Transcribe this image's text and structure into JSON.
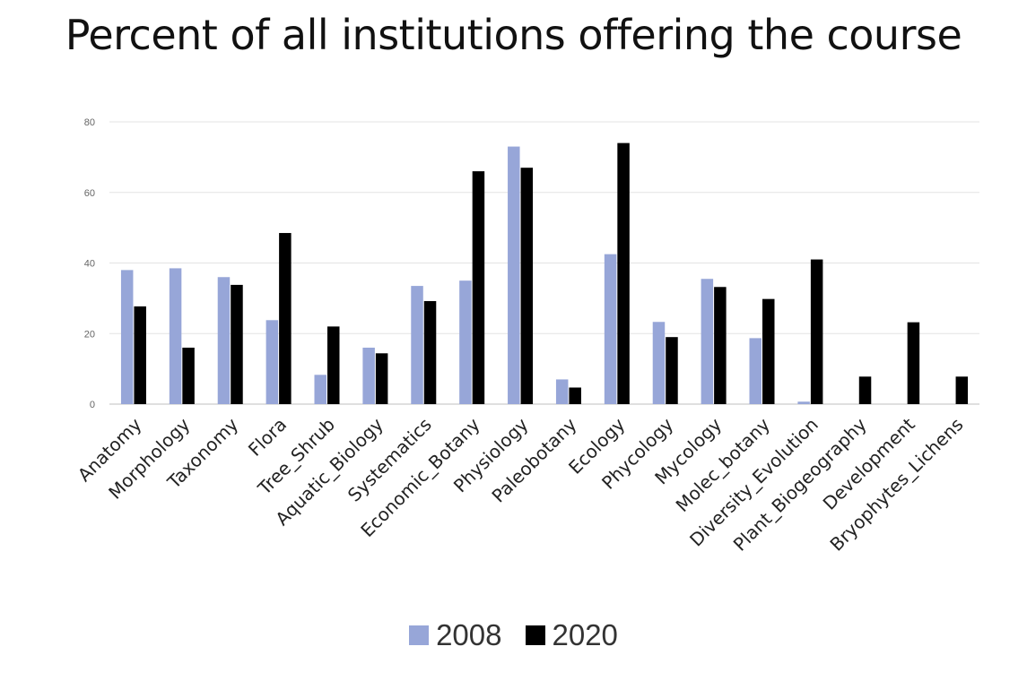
{
  "chart_data": {
    "type": "bar",
    "title": "Percent of all institutions offering the course",
    "xlabel": "",
    "ylabel": "",
    "ylim": [
      0,
      80
    ],
    "yticks": [
      "0",
      "20",
      "40",
      "60",
      "80"
    ],
    "grid": true,
    "legend_position": "bottom",
    "categories": [
      "Anatomy",
      "Morphology",
      "Taxonomy",
      "Flora",
      "Tree_Shrub",
      "Aquatic_Biology",
      "Systematics",
      "Economic_Botany",
      "Physiology",
      "Paleobotany",
      "Ecology",
      "Phycology",
      "Mycology",
      "Molec_botany",
      "Diversity_Evolution",
      "Plant_Biogeography",
      "Development",
      "Bryophytes_Lichens"
    ],
    "series": [
      {
        "name": "2008",
        "color": "#97a6d8",
        "values": [
          38,
          38.5,
          36,
          23.8,
          8.3,
          16,
          33.5,
          35,
          73,
          7,
          42.5,
          23.3,
          35.5,
          18.7,
          0.7,
          0,
          0,
          0
        ]
      },
      {
        "name": "2020",
        "color": "#000000",
        "values": [
          27.7,
          16,
          33.8,
          48.5,
          22,
          14.4,
          29.2,
          66,
          67,
          4.7,
          74,
          19,
          33.2,
          29.8,
          41,
          7.8,
          23.2,
          7.8
        ]
      }
    ]
  }
}
